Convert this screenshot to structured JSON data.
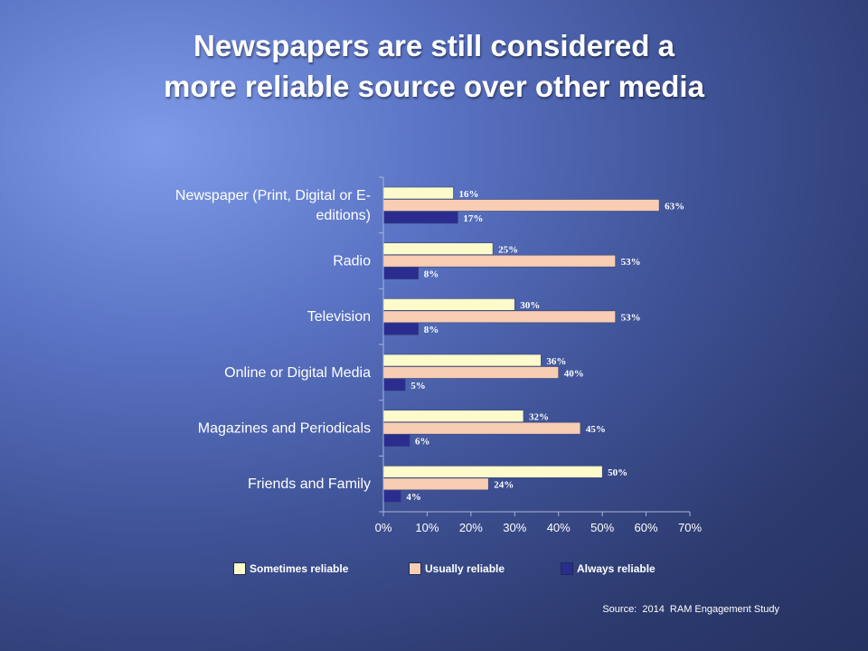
{
  "title_lines": [
    "Newspapers are still considered a",
    "more reliable source over other media"
  ],
  "source": "Source:  2014  RAM Engagement Study",
  "colors": {
    "sometimes": "#fdfbcb",
    "usually": "#f7cdb3",
    "always": "#2a2d8f",
    "axis": "#a9b4d6",
    "text": "#ffffff",
    "data_label": "#ffffff"
  },
  "chart_data": {
    "type": "bar",
    "orientation": "horizontal",
    "categories": [
      "Newspaper (Print, Digital or E-editions)",
      "Radio",
      "Television",
      "Online or Digital Media",
      "Magazines and Periodicals",
      "Friends and Family"
    ],
    "category_label_lines": [
      [
        "Newspaper (Print, Digital or E-",
        "editions)"
      ],
      [
        "Radio"
      ],
      [
        "Television"
      ],
      [
        "Online or Digital Media"
      ],
      [
        "Magazines and Periodicals"
      ],
      [
        "Friends and Family"
      ]
    ],
    "series": [
      {
        "name": "Sometimes reliable",
        "color_key": "sometimes",
        "values": [
          16,
          25,
          30,
          36,
          32,
          50
        ],
        "labels": [
          "16%",
          "25%",
          "30%",
          "36%",
          "32%",
          "50%"
        ]
      },
      {
        "name": "Usually reliable",
        "color_key": "usually",
        "values": [
          63,
          53,
          53,
          40,
          45,
          24
        ],
        "labels": [
          "63%",
          "53%",
          "53%",
          "40%",
          "45%",
          "24%"
        ]
      },
      {
        "name": "Always reliable",
        "color_key": "always",
        "values": [
          17,
          8,
          8,
          5,
          6,
          4
        ],
        "labels": [
          "17%",
          "8%",
          "8%",
          "5%",
          "6%",
          "4%"
        ]
      }
    ],
    "xlim": [
      0,
      70
    ],
    "xticks": [
      0,
      10,
      20,
      30,
      40,
      50,
      60,
      70
    ],
    "xtick_labels": [
      "0%",
      "10%",
      "20%",
      "30%",
      "40%",
      "50%",
      "60%",
      "70%"
    ],
    "grid": false,
    "legend_position": "bottom"
  }
}
